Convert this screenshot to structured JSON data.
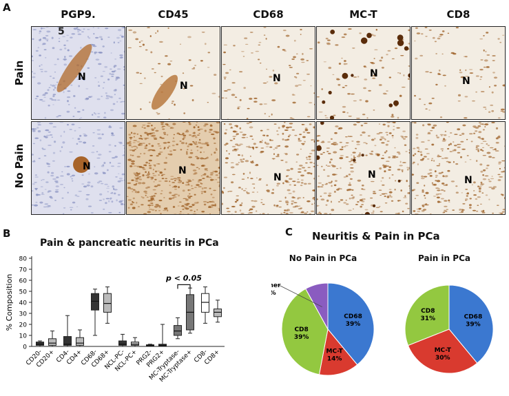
{
  "panels": {
    "a": "A",
    "b": "B",
    "c": "C"
  },
  "columns": [
    "PGP9.",
    "CD45",
    "CD68",
    "MC-T",
    "CD8"
  ],
  "pgp_suffix": "5",
  "rows": [
    "Pain",
    "No Pain"
  ],
  "nerve_label": "N",
  "colors": {
    "hematoxylin": "#8a93c2",
    "dab": "#9a5a1e",
    "tissue": "#efe6d8"
  },
  "chart_data": [
    {
      "type": "box",
      "title": "Pain & pancreatic neuritis in PCa",
      "xlabel": "",
      "ylabel": "% Composition",
      "ylim": [
        0,
        80
      ],
      "yticks": [
        0,
        10,
        20,
        30,
        40,
        50,
        60,
        70,
        80
      ],
      "categories": [
        "CD20-",
        "CD20+",
        "CD4-",
        "CD4+",
        "CD68-",
        "CD68+",
        "NCL-PC-",
        "NCL-PC+",
        "PRG2-",
        "PRG2+",
        "MC-Tryptase-",
        "MC-Tryptase+",
        "CD8-",
        "CD8+"
      ],
      "boxes": [
        {
          "min": 0,
          "q1": 1,
          "median": 2,
          "q3": 4,
          "max": 5,
          "fill": "#333333"
        },
        {
          "min": 0,
          "q1": 1,
          "median": 3,
          "q3": 7,
          "max": 14,
          "fill": "#bbbbbb"
        },
        {
          "min": 0,
          "q1": 1,
          "median": 2,
          "q3": 9,
          "max": 28,
          "fill": "#333333"
        },
        {
          "min": 0,
          "q1": 1,
          "median": 3,
          "q3": 8,
          "max": 15,
          "fill": "#bbbbbb"
        },
        {
          "min": 10,
          "q1": 33,
          "median": 41,
          "q3": 48,
          "max": 52,
          "fill": "#333333"
        },
        {
          "min": 21,
          "q1": 31,
          "median": 39,
          "q3": 48,
          "max": 54,
          "fill": "#bbbbbb"
        },
        {
          "min": 0,
          "q1": 1,
          "median": 2,
          "q3": 5,
          "max": 11,
          "fill": "#333333"
        },
        {
          "min": 0,
          "q1": 1,
          "median": 2,
          "q3": 4,
          "max": 8,
          "fill": "#bbbbbb"
        },
        {
          "min": 0,
          "q1": 0.5,
          "median": 1,
          "q3": 1.5,
          "max": 2,
          "fill": "#333333"
        },
        {
          "min": 0,
          "q1": 0.5,
          "median": 1,
          "q3": 2,
          "max": 20,
          "fill": "#333333"
        },
        {
          "min": 7,
          "q1": 10,
          "median": 14,
          "q3": 19,
          "max": 26,
          "fill": "#777777"
        },
        {
          "min": 12,
          "q1": 15,
          "median": 31,
          "q3": 47,
          "max": 53,
          "fill": "#777777"
        },
        {
          "min": 21,
          "q1": 31,
          "median": 40,
          "q3": 48,
          "max": 54,
          "fill": "#ffffff"
        },
        {
          "min": 22,
          "q1": 27,
          "median": 31,
          "q3": 34,
          "max": 42,
          "fill": "#bbbbbb"
        }
      ],
      "annotation": "p < 0.05"
    },
    {
      "type": "pie",
      "title": "Neuritis & Pain in PCa",
      "pies": [
        {
          "title": "No Pain in PCa",
          "slices": [
            {
              "label": "CD68",
              "value": 39,
              "color": "#3b78d0"
            },
            {
              "label": "MC-T",
              "value": 14,
              "color": "#d93a2f"
            },
            {
              "label": "CD8",
              "value": 39,
              "color": "#93c840"
            },
            {
              "label": "Other",
              "value": 8,
              "color": "#8a5cc0"
            }
          ]
        },
        {
          "title": "Pain in PCa",
          "slices": [
            {
              "label": "CD68",
              "value": 39,
              "color": "#3b78d0"
            },
            {
              "label": "MC-T",
              "value": 30,
              "color": "#d93a2f"
            },
            {
              "label": "CD8",
              "value": 31,
              "color": "#93c840"
            }
          ]
        }
      ]
    }
  ]
}
